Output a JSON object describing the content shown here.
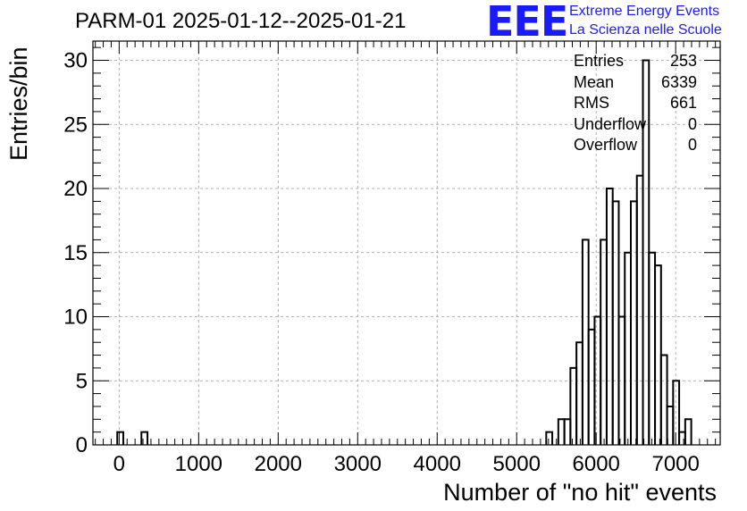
{
  "title": "PARM-01 2025-01-12--2025-01-21",
  "logo": {
    "mark": "EEE",
    "line1": "Extreme Energy Events",
    "line2": "La Scienza nelle Scuole",
    "color": "#1a1aff"
  },
  "stats": [
    {
      "name": "Entries",
      "value": "253"
    },
    {
      "name": "Mean",
      "value": "6339"
    },
    {
      "name": "RMS",
      "value": "661"
    },
    {
      "name": "Underflow",
      "value": "0"
    },
    {
      "name": "Overflow",
      "value": "0"
    }
  ],
  "chart_data": {
    "type": "bar",
    "title": "PARM-01 2025-01-12--2025-01-21",
    "xlabel": "Number of \"no hit\" events",
    "ylabel": "Entries/bin",
    "xlim": [
      -330,
      7560
    ],
    "ylim": [
      0,
      31.5
    ],
    "bin_width": 76,
    "grid": true,
    "legend": "none",
    "x_ticks": [
      0,
      1000,
      2000,
      3000,
      4000,
      5000,
      6000,
      7000
    ],
    "y_ticks": [
      0,
      5,
      10,
      15,
      20,
      25,
      30
    ],
    "bins": [
      {
        "x0": -24,
        "x1": 52,
        "value": 1
      },
      {
        "x0": 280,
        "x1": 356,
        "value": 1
      },
      {
        "x0": 5372,
        "x1": 5448,
        "value": 1
      },
      {
        "x0": 5524,
        "x1": 5600,
        "value": 2
      },
      {
        "x0": 5600,
        "x1": 5676,
        "value": 2
      },
      {
        "x0": 5676,
        "x1": 5752,
        "value": 6
      },
      {
        "x0": 5752,
        "x1": 5828,
        "value": 8
      },
      {
        "x0": 5828,
        "x1": 5904,
        "value": 16
      },
      {
        "x0": 5904,
        "x1": 5980,
        "value": 9
      },
      {
        "x0": 5980,
        "x1": 6056,
        "value": 10
      },
      {
        "x0": 6056,
        "x1": 6132,
        "value": 16
      },
      {
        "x0": 6132,
        "x1": 6208,
        "value": 20
      },
      {
        "x0": 6208,
        "x1": 6284,
        "value": 19
      },
      {
        "x0": 6284,
        "x1": 6360,
        "value": 10
      },
      {
        "x0": 6360,
        "x1": 6436,
        "value": 15
      },
      {
        "x0": 6436,
        "x1": 6512,
        "value": 19
      },
      {
        "x0": 6512,
        "x1": 6588,
        "value": 21
      },
      {
        "x0": 6588,
        "x1": 6664,
        "value": 30
      },
      {
        "x0": 6664,
        "x1": 6740,
        "value": 15
      },
      {
        "x0": 6740,
        "x1": 6816,
        "value": 14
      },
      {
        "x0": 6816,
        "x1": 6892,
        "value": 7
      },
      {
        "x0": 6892,
        "x1": 6968,
        "value": 3
      },
      {
        "x0": 6968,
        "x1": 7044,
        "value": 5
      },
      {
        "x0": 7044,
        "x1": 7120,
        "value": 1
      },
      {
        "x0": 7120,
        "x1": 7196,
        "value": 2
      }
    ]
  }
}
